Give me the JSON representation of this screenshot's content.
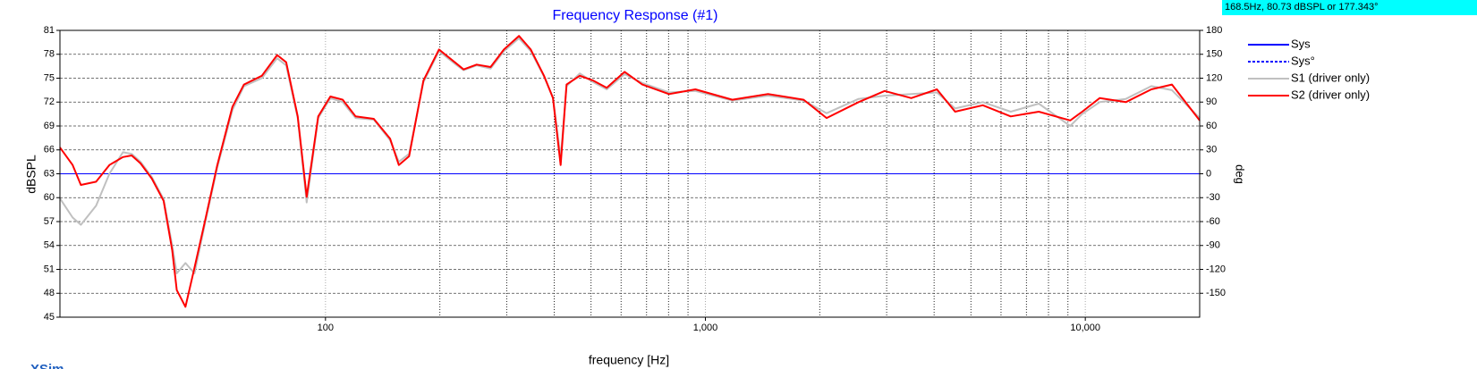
{
  "chart_data": {
    "type": "line",
    "title": "Frequency Response (#1)",
    "readout": "168.5Hz, 80.73 dBSPL or 177.343°",
    "brand": "XSim",
    "x_label": "frequency [Hz]",
    "y_label": "dBSPL",
    "y2_label": "deg",
    "log_x": true,
    "grid": true,
    "legend": "right",
    "xlim": [
      20,
      20000
    ],
    "xticks": [
      100,
      {
        "value": 1000,
        "label": "1,000"
      },
      {
        "value": 10000,
        "label": "10,000"
      }
    ],
    "xminorticks": [
      200,
      300,
      400,
      500,
      600,
      700,
      800,
      900,
      2000,
      3000,
      4000,
      5000,
      6000,
      7000,
      8000,
      9000
    ],
    "ylim": [
      45,
      81
    ],
    "yticks": [
      45,
      48,
      51,
      54,
      57,
      60,
      63,
      66,
      69,
      72,
      75,
      78,
      81
    ],
    "y2lim": [
      -180,
      180
    ],
    "y2ticks": [
      180,
      150,
      120,
      90,
      60,
      30,
      0,
      -30,
      -60,
      -90,
      -120,
      -150
    ],
    "x": [
      20,
      21.6,
      22.7,
      24.9,
      27,
      29.3,
      30.9,
      32.6,
      34.9,
      37.5,
      39.5,
      40.6,
      42.8,
      45.2,
      48.3,
      51.9,
      56.9,
      61,
      68,
      74.6,
      78.8,
      84.5,
      89.2,
      95.7,
      103,
      111,
      120,
      134,
      148,
      156,
      166,
      181,
      199,
      219,
      231,
      250,
      272,
      295,
      323,
      347,
      376,
      397,
      416,
      431,
      467,
      507,
      550,
      613,
      682,
      802,
      941,
      1177,
      1462,
      1814,
      2085,
      2530,
      2965,
      3482,
      4069,
      4542,
      5372,
      6364,
      7544,
      9128,
      9813,
      10910,
      12790,
      14920,
      16910,
      20000
    ],
    "series": [
      {
        "name": "Sys",
        "color": "#0000ff",
        "dash": false,
        "axis": "y2",
        "values": [
          0,
          0,
          0,
          0,
          0,
          0,
          0,
          0,
          0,
          0,
          0,
          0,
          0,
          0,
          0,
          0,
          0,
          0,
          0,
          0,
          0,
          0,
          0,
          0,
          0,
          0,
          0,
          0,
          0,
          0,
          0,
          0,
          0,
          0,
          0,
          0,
          0,
          0,
          0,
          0,
          0,
          0,
          0,
          0,
          0,
          0,
          0,
          0,
          0,
          0,
          0,
          0,
          0,
          0,
          0,
          0,
          0,
          0,
          0,
          0,
          0,
          0,
          0,
          0,
          0,
          0,
          0,
          0,
          0,
          0
        ]
      },
      {
        "name": "Sys°",
        "color": "#0000ff",
        "dash": true,
        "axis": "y2",
        "values": [
          null,
          null,
          null,
          null,
          null,
          null,
          null,
          null,
          null,
          null,
          null,
          null,
          null,
          null,
          null,
          null,
          null,
          null,
          null,
          null,
          null,
          null,
          null,
          null,
          null,
          null,
          null,
          null,
          null,
          null,
          null,
          null,
          null,
          null,
          null,
          null,
          null,
          null,
          null,
          null,
          null,
          null,
          null,
          null,
          null,
          null,
          null,
          null,
          null,
          null,
          null,
          null,
          null,
          null,
          null,
          null,
          null,
          null,
          null,
          null,
          null,
          null,
          null,
          null,
          null,
          null,
          null,
          null,
          null,
          null
        ]
      },
      {
        "name": "S1 (driver only)",
        "color": "#c0c0c0",
        "dash": false,
        "values": [
          59.9,
          57.5,
          56.6,
          59.0,
          63.0,
          65.7,
          65.5,
          64.5,
          62.6,
          59.8,
          54.0,
          50.5,
          51.8,
          50.5,
          57.0,
          63.8,
          71.0,
          74.0,
          75.0,
          77.5,
          76.6,
          70.0,
          59.4,
          70.0,
          72.5,
          72.0,
          70.0,
          69.8,
          67.2,
          64.5,
          65.5,
          74.5,
          78.4,
          76.8,
          76.0,
          76.6,
          76.2,
          78.4,
          80.0,
          78.4,
          75.2,
          72.6,
          65.0,
          74.0,
          75.6,
          74.5,
          73.6,
          75.5,
          74.4,
          73.2,
          73.4,
          72.2,
          72.8,
          72.2,
          70.6,
          72.4,
          72.8,
          73.0,
          73.2,
          71.2,
          72.0,
          70.8,
          71.8,
          69.0,
          70.5,
          72.0,
          72.4,
          74.0,
          73.5,
          70.0
        ]
      },
      {
        "name": "S2 (driver only)",
        "color": "#ff0000",
        "dash": false,
        "values": [
          66.3,
          64.1,
          61.6,
          62.0,
          64.1,
          65.1,
          65.3,
          64.3,
          62.4,
          59.6,
          53.4,
          48.4,
          46.3,
          51.2,
          57.3,
          64.1,
          71.4,
          74.2,
          75.3,
          77.9,
          77.0,
          70.2,
          60.1,
          70.2,
          72.7,
          72.3,
          70.2,
          69.9,
          67.4,
          64.1,
          65.2,
          74.7,
          78.6,
          77.0,
          76.1,
          76.7,
          76.4,
          78.6,
          80.3,
          78.6,
          75.3,
          72.5,
          64.1,
          74.2,
          75.3,
          74.7,
          73.8,
          75.8,
          74.2,
          73.0,
          73.6,
          72.3,
          73.0,
          72.3,
          70.0,
          72.0,
          73.4,
          72.5,
          73.6,
          70.8,
          71.6,
          70.2,
          70.8,
          69.7,
          70.8,
          72.5,
          72.0,
          73.6,
          74.2,
          69.7
        ]
      }
    ]
  }
}
